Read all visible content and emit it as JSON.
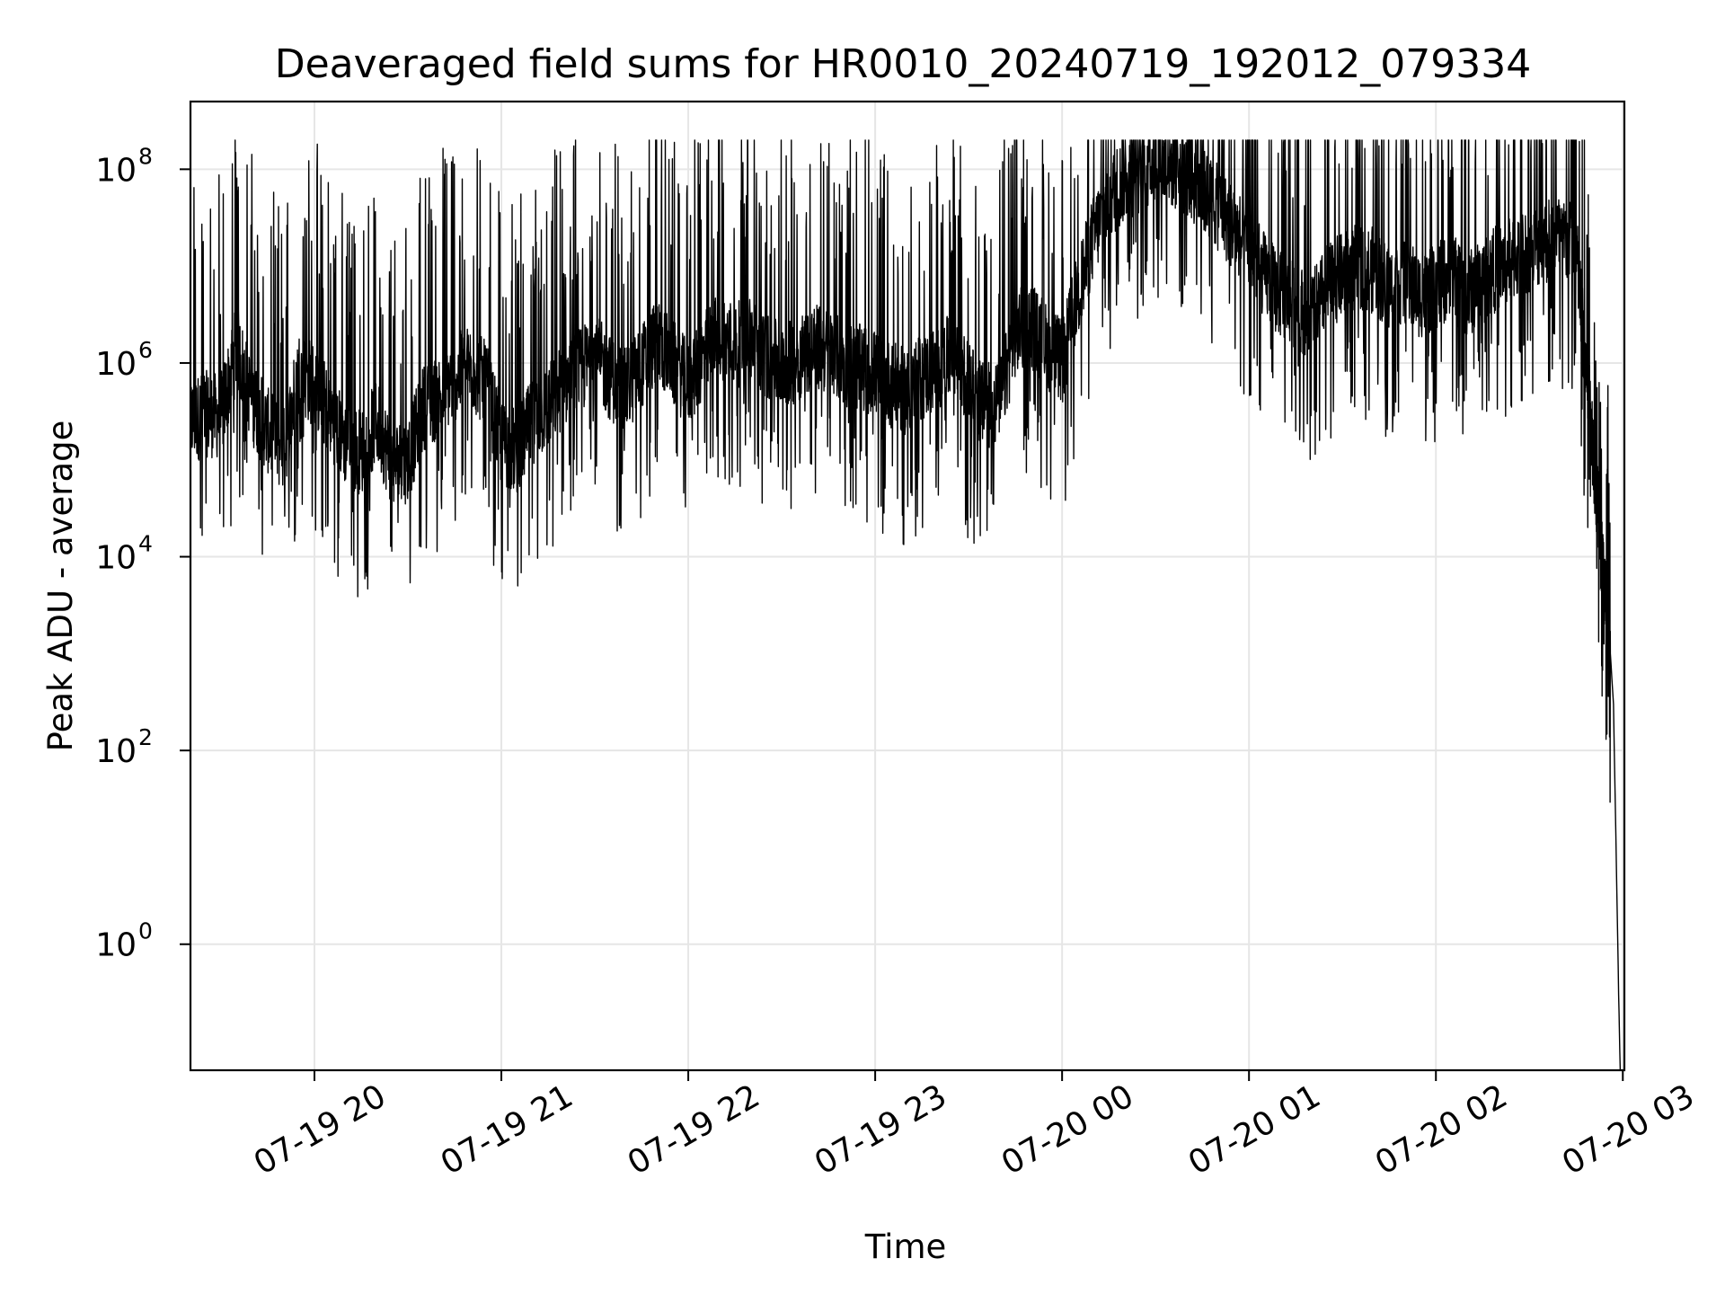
{
  "chart_data": {
    "type": "line",
    "title": "Deaveraged field sums for HR0010_20240719_192012_079334",
    "xlabel": "Time",
    "ylabel": "Peak ADU - average",
    "y_scale": "log",
    "ylim": [
      0.05,
      500000000.0
    ],
    "xlim": [
      "2024-07-19T19:20:12",
      "2024-07-20T03:00:30"
    ],
    "x_ticks": [
      {
        "t": "2024-07-19T20:00:00",
        "label": "07-19 20"
      },
      {
        "t": "2024-07-19T21:00:00",
        "label": "07-19 21"
      },
      {
        "t": "2024-07-19T22:00:00",
        "label": "07-19 22"
      },
      {
        "t": "2024-07-19T23:00:00",
        "label": "07-19 23"
      },
      {
        "t": "2024-07-20T00:00:00",
        "label": "07-20 00"
      },
      {
        "t": "2024-07-20T01:00:00",
        "label": "07-20 01"
      },
      {
        "t": "2024-07-20T02:00:00",
        "label": "07-20 02"
      },
      {
        "t": "2024-07-20T03:00:00",
        "label": "07-20 03"
      }
    ],
    "y_ticks": [
      {
        "value": 1,
        "base": "10",
        "exp": "0"
      },
      {
        "value": 100,
        "base": "10",
        "exp": "2"
      },
      {
        "value": 10000,
        "base": "10",
        "exp": "4"
      },
      {
        "value": 1000000,
        "base": "10",
        "exp": "6"
      },
      {
        "value": 100000000,
        "base": "10",
        "exp": "8"
      }
    ],
    "grid": true,
    "line_color": "#000000",
    "series": [
      {
        "x": [
          "2024-07-19T19:20:12",
          "2024-07-19T19:25:00",
          "2024-07-19T19:30:00",
          "2024-07-19T19:35:00",
          "2024-07-19T19:40:00",
          "2024-07-19T19:45:00",
          "2024-07-19T19:50:00",
          "2024-07-19T19:55:00",
          "2024-07-19T20:00:00",
          "2024-07-19T20:05:00",
          "2024-07-19T20:10:00",
          "2024-07-19T20:15:00",
          "2024-07-19T20:20:00",
          "2024-07-19T20:25:00",
          "2024-07-19T20:30:00",
          "2024-07-19T20:35:00",
          "2024-07-19T20:40:00",
          "2024-07-19T20:45:00",
          "2024-07-19T20:50:00",
          "2024-07-19T20:55:00",
          "2024-07-19T21:00:00",
          "2024-07-19T21:05:00",
          "2024-07-19T21:10:00",
          "2024-07-19T21:15:00",
          "2024-07-19T21:20:00",
          "2024-07-19T21:25:00",
          "2024-07-19T21:30:00",
          "2024-07-19T21:35:00",
          "2024-07-19T21:40:00",
          "2024-07-19T21:45:00",
          "2024-07-19T21:50:00",
          "2024-07-19T21:55:00",
          "2024-07-19T22:00:00",
          "2024-07-19T22:05:00",
          "2024-07-19T22:10:00",
          "2024-07-19T22:15:00",
          "2024-07-19T22:20:00",
          "2024-07-19T22:25:00",
          "2024-07-19T22:30:00",
          "2024-07-19T22:35:00",
          "2024-07-19T22:40:00",
          "2024-07-19T22:45:00",
          "2024-07-19T22:50:00",
          "2024-07-19T22:55:00",
          "2024-07-19T23:00:00",
          "2024-07-19T23:05:00",
          "2024-07-19T23:10:00",
          "2024-07-19T23:15:00",
          "2024-07-19T23:20:00",
          "2024-07-19T23:25:00",
          "2024-07-19T23:30:00",
          "2024-07-19T23:35:00",
          "2024-07-19T23:40:00",
          "2024-07-19T23:45:00",
          "2024-07-19T23:50:00",
          "2024-07-19T23:55:00",
          "2024-07-20T00:00:00",
          "2024-07-20T00:05:00",
          "2024-07-20T00:10:00",
          "2024-07-20T00:15:00",
          "2024-07-20T00:20:00",
          "2024-07-20T00:25:00",
          "2024-07-20T00:30:00",
          "2024-07-20T00:35:00",
          "2024-07-20T00:40:00",
          "2024-07-20T00:45:00",
          "2024-07-20T00:50:00",
          "2024-07-20T00:55:00",
          "2024-07-20T01:00:00",
          "2024-07-20T01:05:00",
          "2024-07-20T01:10:00",
          "2024-07-20T01:15:00",
          "2024-07-20T01:20:00",
          "2024-07-20T01:25:00",
          "2024-07-20T01:30:00",
          "2024-07-20T01:35:00",
          "2024-07-20T01:40:00",
          "2024-07-20T01:45:00",
          "2024-07-20T01:50:00",
          "2024-07-20T01:55:00",
          "2024-07-20T02:00:00",
          "2024-07-20T02:05:00",
          "2024-07-20T02:10:00",
          "2024-07-20T02:15:00",
          "2024-07-20T02:20:00",
          "2024-07-20T02:25:00",
          "2024-07-20T02:30:00",
          "2024-07-20T02:35:00",
          "2024-07-20T02:40:00",
          "2024-07-20T02:45:00",
          "2024-07-20T02:48:00",
          "2024-07-20T02:50:00",
          "2024-07-20T02:52:00",
          "2024-07-20T02:54:00",
          "2024-07-20T02:56:00",
          "2024-07-20T02:57:00",
          "2024-07-20T02:58:00",
          "2024-07-20T02:58:40",
          "2024-07-20T02:59:10",
          "2024-07-20T02:59:30"
        ],
        "y": [
          250000,
          300000,
          280000,
          1500000,
          400000,
          200000,
          120000,
          800000,
          600000,
          300000,
          150000,
          120000,
          250000,
          90000,
          100000,
          350000,
          450000,
          700000,
          900000,
          600000,
          150000,
          120000,
          250000,
          350000,
          600000,
          800000,
          1200000,
          700000,
          500000,
          900000,
          1800000,
          1000000,
          600000,
          1200000,
          2000000,
          1500000,
          1800000,
          1200000,
          900000,
          1100000,
          1500000,
          1300000,
          1000000,
          900000,
          800000,
          600000,
          500000,
          700000,
          900000,
          1200000,
          600000,
          350000,
          400000,
          2000000,
          2500000,
          1500000,
          1000000,
          5000000,
          20000000,
          50000000,
          80000000,
          100000000,
          120000000,
          110000000,
          90000000,
          60000000,
          40000000,
          25000000,
          15000000,
          8000000,
          5000000,
          4000000,
          3000000,
          6000000,
          8000000,
          10000000,
          9000000,
          6000000,
          7000000,
          5000000,
          6000000,
          8000000,
          5000000,
          7000000,
          10000000,
          12000000,
          15000000,
          18000000,
          20000000,
          15000000,
          1000000,
          200000,
          30000,
          5000,
          1000,
          300,
          5,
          0.3,
          0.05,
          0.05
        ]
      }
    ]
  }
}
